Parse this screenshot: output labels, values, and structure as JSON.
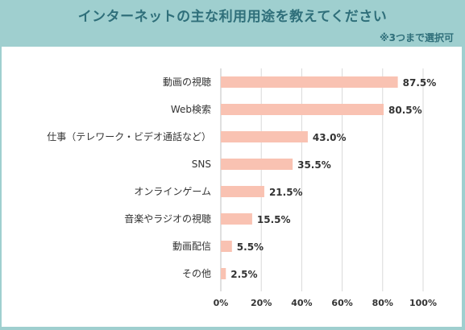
{
  "header": {
    "title": "インターネットの主な利用用途を教えてください",
    "note": "※3つまで選択可"
  },
  "colors": {
    "background": "#9fcfcf",
    "title_text": "#2f6f7a",
    "bar": "#f9c2b2",
    "grid": "#d9d9d9"
  },
  "chart_data": {
    "type": "bar",
    "orientation": "horizontal",
    "categories": [
      "動画の視聴",
      "Web検索",
      "仕事（テレワーク・ビデオ通話など）",
      "SNS",
      "オンラインゲーム",
      "音楽やラジオの視聴",
      "動画配信",
      "その他"
    ],
    "values": [
      87.5,
      80.5,
      43.0,
      35.5,
      21.5,
      15.5,
      5.5,
      2.5
    ],
    "value_labels": [
      "87.5%",
      "80.5%",
      "43.0%",
      "35.5%",
      "21.5%",
      "15.5%",
      "5.5%",
      "2.5%"
    ],
    "xlim": [
      0,
      100
    ],
    "ticks": [
      0,
      20,
      40,
      60,
      80,
      100
    ],
    "tick_labels": [
      "0%",
      "20%",
      "40%",
      "60%",
      "80%",
      "100%"
    ],
    "grid": true,
    "legend": "none"
  }
}
